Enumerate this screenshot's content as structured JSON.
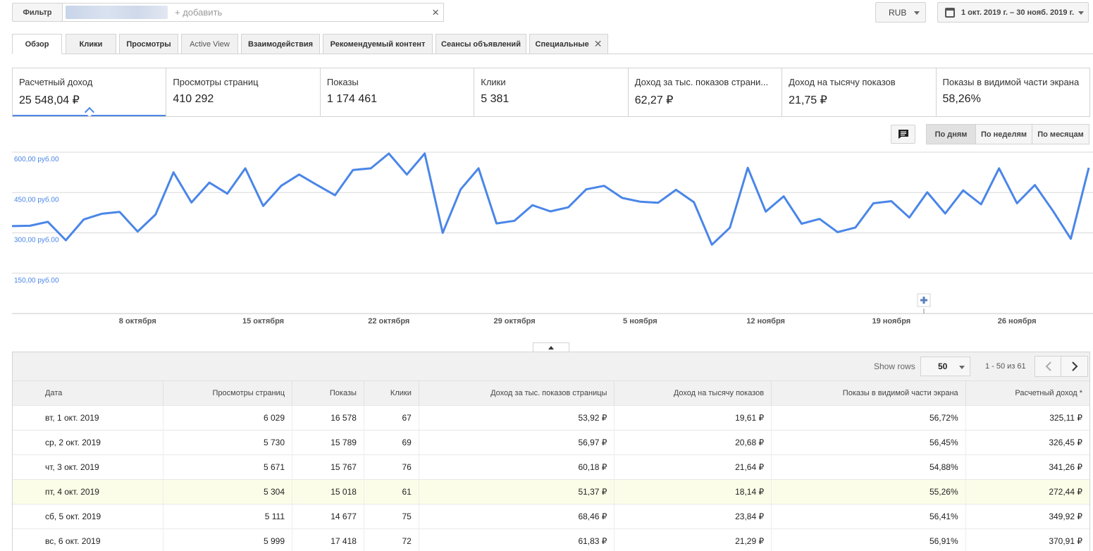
{
  "topbar": {
    "filter_label": "Фильтр",
    "filter_placeholder": "+ добавить",
    "clear_icon": "×",
    "currency": "RUB",
    "date_range": "1 окт. 2019 г. – 30 нояб. 2019 г."
  },
  "tabs": [
    {
      "label": "Обзор"
    },
    {
      "label": "Клики"
    },
    {
      "label": "Просмотры"
    },
    {
      "label": "Active View"
    },
    {
      "label": "Взаимодействия"
    },
    {
      "label": "Рекомендуемый контент"
    },
    {
      "label": "Сеансы объявлений"
    },
    {
      "label": "Специальные"
    }
  ],
  "metrics": [
    {
      "label": "Расчетный доход",
      "value": "25 548,04 ₽"
    },
    {
      "label": "Просмотры страниц",
      "value": "410 292"
    },
    {
      "label": "Показы",
      "value": "1 174 461"
    },
    {
      "label": "Клики",
      "value": "5 381"
    },
    {
      "label": "Доход за тыс. показов страни...",
      "value": "62,27 ₽"
    },
    {
      "label": "Доход на тысячу показов",
      "value": "21,75 ₽"
    },
    {
      "label": "Показы в видимой части экрана",
      "value": "58,26%"
    }
  ],
  "granularity": {
    "days": "По дням",
    "weeks": "По неделям",
    "months": "По месяцам"
  },
  "icons": {
    "comment": "comment-icon",
    "calendar": "calendar-icon",
    "plus": "plus-icon"
  },
  "colors": {
    "series": "#4a86e8",
    "highlight_row": "#fcfde8"
  },
  "chart_data": {
    "type": "line",
    "y_ticks": [
      "600,00 руб.00",
      "450,00 руб.00",
      "300,00 руб.00",
      "150,00 руб.00"
    ],
    "y_tick_values": [
      600,
      450,
      300,
      150
    ],
    "ylim": [
      0,
      600
    ],
    "x_tick_labels": [
      "8 октября",
      "15 октября",
      "22 октября",
      "29 октября",
      "5 ноября",
      "12 ноября",
      "19 ноября",
      "26 ноября"
    ],
    "x_tick_days": [
      7,
      14,
      21,
      28,
      35,
      42,
      49,
      56
    ],
    "values": [
      325.11,
      326.45,
      341.26,
      272.44,
      349.92,
      370.91,
      378,
      305,
      368,
      525,
      413,
      487,
      446,
      540,
      400,
      475,
      517,
      478,
      440,
      534,
      540,
      595,
      517,
      595,
      300,
      462,
      540,
      335,
      345,
      403,
      380,
      395,
      462,
      475,
      430,
      416,
      412,
      460,
      414,
      256,
      319,
      542,
      379,
      436,
      334,
      352,
      303,
      320,
      410,
      418,
      357,
      451,
      372,
      458,
      406,
      540,
      410,
      478,
      382,
      278,
      542
    ],
    "grid": true,
    "legend": "none"
  },
  "table": {
    "show_rows_label": "Show rows",
    "rows_per_page": "50",
    "range_text": "1 - 50 из 61",
    "columns": [
      "Дата",
      "Просмотры страниц",
      "Показы",
      "Клики",
      "Доход за тыс. показов страницы",
      "Доход на тысячу показов",
      "Показы в видимой части экрана",
      "Расчетный доход *"
    ],
    "rows": [
      [
        "вт, 1 окт. 2019",
        "6 029",
        "16 578",
        "67",
        "53,92 ₽",
        "19,61 ₽",
        "56,72%",
        "325,11 ₽"
      ],
      [
        "ср, 2 окт. 2019",
        "5 730",
        "15 789",
        "69",
        "56,97 ₽",
        "20,68 ₽",
        "56,45%",
        "326,45 ₽"
      ],
      [
        "чт, 3 окт. 2019",
        "5 671",
        "15 767",
        "76",
        "60,18 ₽",
        "21,64 ₽",
        "54,88%",
        "341,26 ₽"
      ],
      [
        "пт, 4 окт. 2019",
        "5 304",
        "15 018",
        "61",
        "51,37 ₽",
        "18,14 ₽",
        "55,26%",
        "272,44 ₽"
      ],
      [
        "сб, 5 окт. 2019",
        "5 111",
        "14 677",
        "75",
        "68,46 ₽",
        "23,84 ₽",
        "56,41%",
        "349,92 ₽"
      ],
      [
        "вс, 6 окт. 2019",
        "5 999",
        "17 418",
        "72",
        "61,83 ₽",
        "21,29 ₽",
        "56,91%",
        "370,91 ₽"
      ]
    ]
  }
}
